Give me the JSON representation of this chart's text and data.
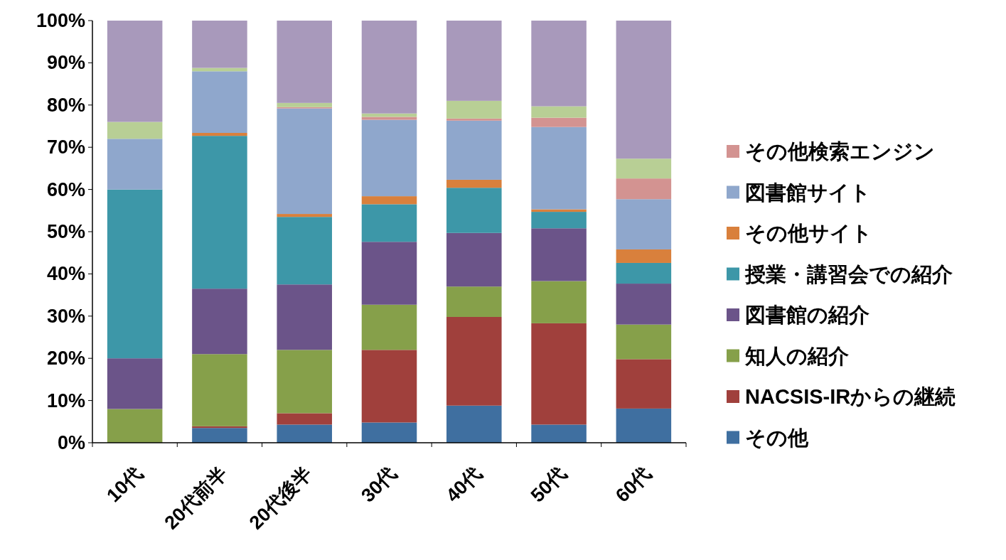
{
  "chart_data": {
    "type": "bar",
    "stacked": true,
    "legend": "right",
    "grid": false,
    "categories": [
      "10代",
      "20代前半",
      "20代後半",
      "30代",
      "40代",
      "50代",
      "60代"
    ],
    "ylim": [
      0,
      100
    ],
    "yticks": [
      {
        "value": 0,
        "label": "0%"
      },
      {
        "value": 10,
        "label": "10%"
      },
      {
        "value": 20,
        "label": "20%"
      },
      {
        "value": 30,
        "label": "30%"
      },
      {
        "value": 40,
        "label": "40%"
      },
      {
        "value": 50,
        "label": "50%"
      },
      {
        "value": 60,
        "label": "60%"
      },
      {
        "value": 70,
        "label": "70%"
      },
      {
        "value": 80,
        "label": "80%"
      },
      {
        "value": 90,
        "label": "90%"
      },
      {
        "value": 100,
        "label": "100%"
      }
    ],
    "series": [
      {
        "name": "その他",
        "color": "#3f6fa0",
        "values": [
          0,
          3.5,
          4.3,
          4.8,
          8.8,
          4.3,
          8.1
        ]
      },
      {
        "name": "NACSIS-IRからの継続",
        "color": "#a0403c",
        "values": [
          0,
          0.4,
          2.7,
          17.2,
          21,
          24,
          11.7
        ]
      },
      {
        "name": "知人の紹介",
        "color": "#86a04a",
        "values": [
          8,
          17.1,
          15,
          10.7,
          7.2,
          10,
          8.2
        ]
      },
      {
        "name": "図書館の紹介",
        "color": "#6b5489",
        "values": [
          12,
          15.5,
          15.5,
          14.9,
          12.7,
          12.5,
          9.7
        ]
      },
      {
        "name": "授業・講習会での紹介",
        "color": "#3d97a8",
        "values": [
          40,
          36.2,
          16,
          8.9,
          10.7,
          3.9,
          4.9
        ]
      },
      {
        "name": "その他サイト",
        "color": "#d9803c",
        "values": [
          0,
          0.7,
          0.7,
          1.9,
          1.9,
          0.6,
          3.2
        ]
      },
      {
        "name": "図書館サイト",
        "color": "#8fa7cc",
        "values": [
          12,
          14.6,
          25,
          18.1,
          14,
          19.5,
          11.9
        ]
      },
      {
        "name": "その他検索エンジン",
        "color": "#d39391",
        "values": [
          0,
          0,
          0.3,
          0.7,
          0.5,
          2.2,
          4.9
        ]
      },
      {
        "color": "#b8cf95",
        "values": [
          4,
          0.8,
          1,
          0.8,
          4.2,
          2.7,
          4.7
        ]
      },
      {
        "color": "#a899bb",
        "values": [
          24,
          11.2,
          19.5,
          22,
          19,
          20.3,
          32.7
        ]
      }
    ]
  }
}
